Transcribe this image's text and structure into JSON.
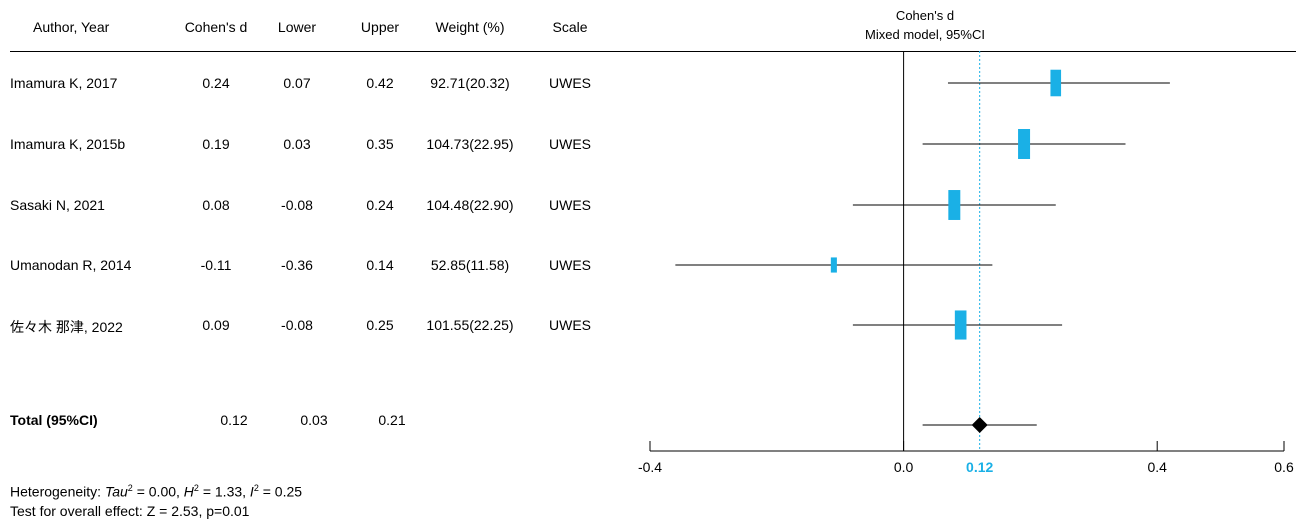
{
  "table": {
    "headers": {
      "author": "Author, Year",
      "d": "Cohen's d",
      "lower": "Lower",
      "upper": "Upper",
      "weight": "Weight (%)",
      "scale": "Scale"
    },
    "rows": [
      {
        "author": "Imamura K, 2017",
        "d": "0.24",
        "lower": "0.07",
        "upper": "0.42",
        "weight": "92.71(20.32)",
        "scale": "UWES"
      },
      {
        "author": "Imamura K, 2015b",
        "d": "0.19",
        "lower": "0.03",
        "upper": "0.35",
        "weight": "104.73(22.95)",
        "scale": "UWES"
      },
      {
        "author": "Sasaki N, 2021",
        "d": "0.08",
        "lower": "-0.08",
        "upper": "0.24",
        "weight": "104.48(22.90)",
        "scale": "UWES"
      },
      {
        "author": "Umanodan R, 2014",
        "d": "-0.11",
        "lower": "-0.36",
        "upper": "0.14",
        "weight": "52.85(11.58)",
        "scale": "UWES"
      },
      {
        "author": "佐々木 那津, 2022",
        "d": "0.09",
        "lower": "-0.08",
        "upper": "0.25",
        "weight": "101.55(22.25)",
        "scale": "UWES"
      }
    ],
    "total": {
      "label": "Total (95%CI)",
      "d": "0.12",
      "lower": "0.03",
      "upper": "0.21"
    }
  },
  "footer": {
    "heterogeneity_prefix": "Heterogeneity: ",
    "tau_label": "Tau",
    "tau_value": "= 0.00, ",
    "h_label": "H",
    "h_value": "= 1.33, ",
    "i_label": "I",
    "i_value": "= 0.25",
    "sup": "2",
    "overall": "Test for overall effect: Z = 2.53, p=0.01"
  },
  "chart_data": {
    "type": "forest",
    "title": "Cohen's d",
    "subtitle": "Mixed model, 95%CI",
    "xlim": [
      -0.4,
      0.6
    ],
    "ticks": [
      -0.4,
      0.0,
      0.4,
      0.6
    ],
    "tick_labels": [
      "-0.4",
      "0.0",
      "0.4",
      "0.6"
    ],
    "pooled_label": "0.12",
    "studies": [
      {
        "d": 0.24,
        "lower": 0.07,
        "upper": 0.42,
        "weight": 20.32
      },
      {
        "d": 0.19,
        "lower": 0.03,
        "upper": 0.35,
        "weight": 22.95
      },
      {
        "d": 0.08,
        "lower": -0.08,
        "upper": 0.24,
        "weight": 22.9
      },
      {
        "d": -0.11,
        "lower": -0.36,
        "upper": 0.14,
        "weight": 11.58
      },
      {
        "d": 0.09,
        "lower": -0.08,
        "upper": 0.25,
        "weight": 22.25
      }
    ],
    "pooled": {
      "d": 0.12,
      "lower": 0.03,
      "upper": 0.21
    },
    "colors": {
      "box": "#1ab0e6",
      "pooled_line": "#1ab0e6",
      "pooled_label": "#1ab0e6",
      "diamond": "#000000",
      "axis": "#000000"
    }
  }
}
